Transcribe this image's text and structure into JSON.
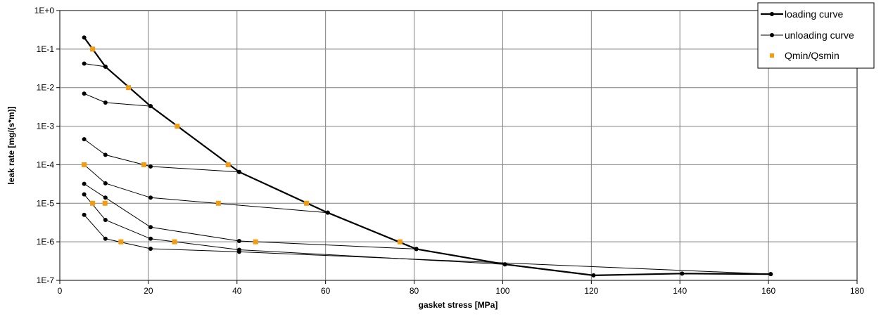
{
  "chart_data": {
    "type": "line",
    "xlabel": "gasket stress [MPa]",
    "ylabel": "leak rate [mg/(s*m)]",
    "xlim": [
      0,
      180
    ],
    "x_ticks": [
      "0",
      "20",
      "40",
      "60",
      "80",
      "100",
      "120",
      "140",
      "160",
      "180"
    ],
    "y_scale": "log",
    "ylim": [
      1e-07,
      1
    ],
    "y_ticks": [
      "1E-7",
      "1E-6",
      "1E-5",
      "1E-4",
      "1E-3",
      "1E-2",
      "1E-1",
      "1E+0"
    ],
    "grid": true,
    "legend_position": "top-right",
    "legend": [
      "loading curve",
      "unloading curve",
      "Qmin/Qsmin"
    ],
    "series": [
      {
        "name": "loading curve",
        "color": "#000000",
        "marker": "circle",
        "points": [
          [
            5.5,
            0.2
          ],
          [
            10.3,
            0.035
          ],
          [
            20.5,
            0.0033
          ],
          [
            40.5,
            6.5e-05
          ],
          [
            60.5,
            5.7e-06
          ],
          [
            80.5,
            6.5e-07
          ],
          [
            100.5,
            2.6e-07
          ],
          [
            120.5,
            1.35e-07
          ],
          [
            140.5,
            1.5e-07
          ],
          [
            160.5,
            1.45e-07
          ]
        ]
      },
      {
        "name": "unloading curve",
        "color": "#000000",
        "marker": "circle",
        "curves": [
          [
            [
              5.5,
              0.042
            ],
            [
              10.3,
              0.035
            ]
          ],
          [
            [
              5.5,
              0.007
            ],
            [
              10.3,
              0.0041
            ],
            [
              20.5,
              0.0033
            ]
          ],
          [
            [
              5.5,
              0.00046
            ],
            [
              10.3,
              0.00018
            ],
            [
              20.5,
              9e-05
            ],
            [
              40.5,
              6.5e-05
            ]
          ],
          [
            [
              5.5,
              3.2e-05
            ],
            [
              10.3,
              1.4e-05
            ],
            [
              20.5,
              2.4e-06
            ],
            [
              40.5,
              1.05e-06
            ],
            [
              80.5,
              6.5e-07
            ]
          ],
          [
            [
              5.5,
              0.0001
            ],
            [
              10.3,
              3.3e-05
            ],
            [
              20.5,
              1.4e-05
            ],
            [
              60.5,
              5.7e-06
            ]
          ],
          [
            [
              5.5,
              1.7e-05
            ],
            [
              10.3,
              3.7e-06
            ],
            [
              20.5,
              1.2e-06
            ],
            [
              40.5,
              6.2e-07
            ],
            [
              100.5,
              2.6e-07
            ]
          ],
          [
            [
              5.5,
              5e-06
            ],
            [
              10.3,
              1.2e-06
            ],
            [
              20.5,
              6.6e-07
            ],
            [
              40.5,
              5.5e-07
            ],
            [
              160.5,
              1.45e-07
            ]
          ]
        ]
      },
      {
        "name": "Qmin/Qsmin",
        "color": "#f39c12",
        "marker": "square",
        "points": [
          [
            7.4,
            0.1
          ],
          [
            15.5,
            0.01
          ],
          [
            26.5,
            0.001
          ],
          [
            38,
            0.0001
          ],
          [
            19,
            0.0001
          ],
          [
            5.5,
            0.0001
          ],
          [
            55.7,
            1e-05
          ],
          [
            35.8,
            1e-05
          ],
          [
            10.2,
            1e-05
          ],
          [
            7.4,
            1e-05
          ],
          [
            76.8,
            1e-06
          ],
          [
            44.2,
            1e-06
          ],
          [
            25.9,
            1e-06
          ],
          [
            13.8,
            1e-06
          ]
        ]
      }
    ]
  }
}
